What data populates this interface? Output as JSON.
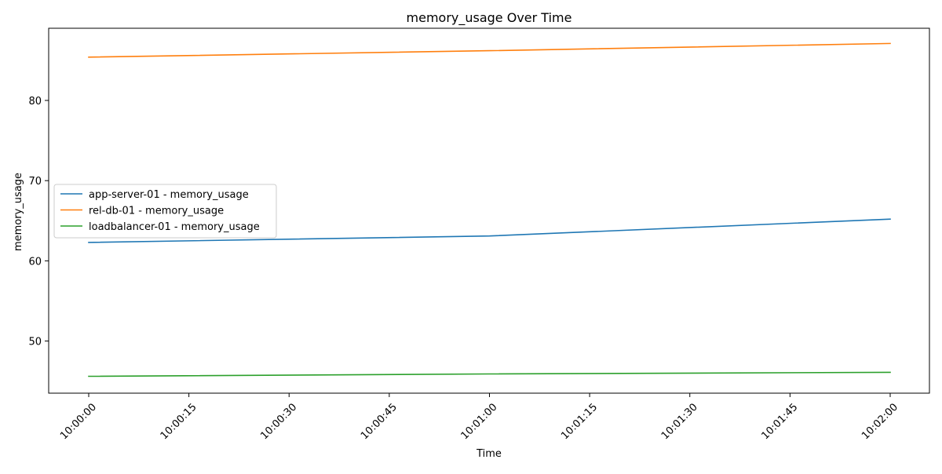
{
  "chart_data": {
    "type": "line",
    "title": "memory_usage Over Time",
    "xlabel": "Time",
    "ylabel": "memory_usage",
    "x": [
      "10:00:00",
      "10:01:00",
      "10:02:00"
    ],
    "x_ticks": [
      "10:00:00",
      "10:00:15",
      "10:00:30",
      "10:00:45",
      "10:01:00",
      "10:01:15",
      "10:01:30",
      "10:01:45",
      "10:02:00"
    ],
    "y_ticks": [
      50,
      60,
      70,
      80
    ],
    "ylim": [
      43.5,
      89.0
    ],
    "grid": false,
    "legend_position": "center-left",
    "series": [
      {
        "name": "app-server-01 - memory_usage",
        "color": "#1f77b4",
        "values": [
          62.3,
          63.1,
          65.2
        ]
      },
      {
        "name": "rel-db-01 - memory_usage",
        "color": "#ff7f0e",
        "values": [
          85.4,
          86.2,
          87.1
        ]
      },
      {
        "name": "loadbalancer-01 - memory_usage",
        "color": "#2ca02c",
        "values": [
          45.6,
          45.9,
          46.1
        ]
      }
    ]
  }
}
